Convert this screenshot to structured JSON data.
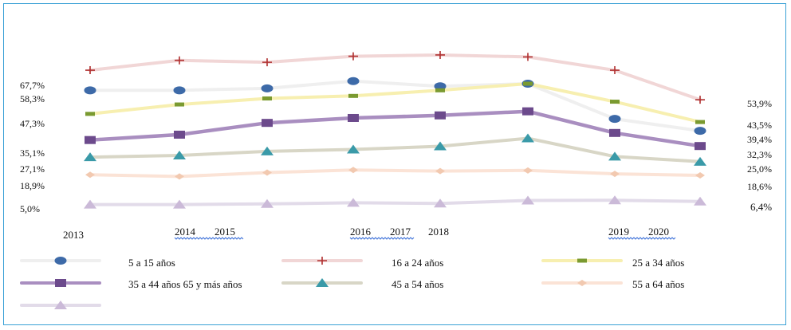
{
  "chart_data": {
    "type": "line",
    "x_ticks": [
      {
        "label": "2013"
      },
      {
        "label": "2014"
      },
      {
        "label": "2015"
      },
      {
        "label": "2016"
      },
      {
        "label": "2017"
      },
      {
        "label": "2018"
      },
      {
        "label": "2019"
      },
      {
        "label": "2020"
      }
    ],
    "left_labels": [
      "67,7%",
      "58,3%",
      "47,3%",
      "35,1%",
      "27,1%",
      "18,9%",
      "5,0%"
    ],
    "right_labels": [
      "53,9%",
      "43,5%",
      "39,4%",
      "32,3%",
      "25,0%",
      "18,6%",
      "6,4%"
    ],
    "legend_labels": [
      "5 a 15 años",
      "16 a 24 años",
      "25 a 34 años",
      "35 a 44 años 65 y más años",
      "45 a 54 años",
      "55 a 64 años",
      ""
    ],
    "series": [
      {
        "color": "#efefef",
        "marker": "circle",
        "marker_color": "#3d6aa8",
        "values": [
          58.3,
          58.3,
          59.2,
          62.6,
          60.2,
          61.4,
          45.0,
          39.4
        ]
      },
      {
        "color": "#f1d6d6",
        "marker": "plus",
        "marker_color": "#b03030",
        "values": [
          67.7,
          72.3,
          71.4,
          74.2,
          74.8,
          73.9,
          67.7,
          53.9
        ]
      },
      {
        "color": "#f7efb0",
        "marker": "dash",
        "marker_color": "#7a9a30",
        "values": [
          47.3,
          51.7,
          54.5,
          55.7,
          58.3,
          61.4,
          53.0,
          43.5
        ]
      },
      {
        "color": "#a98ec0",
        "marker": "square",
        "marker_color": "#6c4a8c",
        "values": [
          35.1,
          37.6,
          43.1,
          45.4,
          46.6,
          48.5,
          38.4,
          32.3
        ]
      },
      {
        "color": "#d8d6c6",
        "marker": "triangle",
        "marker_color": "#3a9aa8",
        "values": [
          27.1,
          27.9,
          29.8,
          30.7,
          32.2,
          35.9,
          27.4,
          25.0
        ]
      },
      {
        "color": "#fbe3d6",
        "marker": "diamond",
        "marker_color": "#f2c9b0",
        "values": [
          18.9,
          18.1,
          19.9,
          21.1,
          20.6,
          20.9,
          19.3,
          18.6
        ]
      },
      {
        "color": "#e2dbe9",
        "marker": "triangle",
        "marker_color": "#cbbad8",
        "values": [
          5.0,
          5.0,
          5.3,
          5.8,
          5.5,
          6.9,
          7.0,
          6.4
        ]
      }
    ]
  }
}
